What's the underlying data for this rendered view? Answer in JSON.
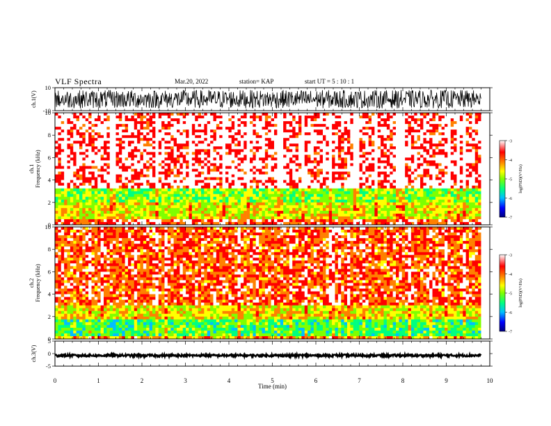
{
  "header": {
    "title": "VLF Spectra",
    "date": "Mar.20, 2022",
    "station": "station= KAP",
    "start_ut": "start  UT =   5 : 10 : 1"
  },
  "chart_data": [
    {
      "type": "line",
      "name": "ch.1 waveform",
      "ylabel": "ch.1(V)",
      "ylim": [
        -10,
        10
      ],
      "y_ticks": [
        "10",
        "-10"
      ],
      "xlim": [
        0,
        10
      ],
      "data_extent_min": [
        0,
        9.8
      ],
      "amplitude_range_V": [
        -8,
        8
      ],
      "trace_color": "#000000"
    },
    {
      "type": "heatmap",
      "name": "ch.1 spectrogram",
      "ylabel_line1": "ch.1",
      "ylabel_line2": "Frequency  (kHz)",
      "ylim": [
        0,
        10
      ],
      "y_ticks": [
        "0",
        "2",
        "4",
        "6",
        "8",
        "10"
      ],
      "xlim": [
        0,
        10
      ],
      "data_extent_min": [
        0,
        9.8
      ],
      "bands_kHz": [
        {
          "from": 0,
          "to": 0.5,
          "level": -3.6
        },
        {
          "from": 0.5,
          "to": 2.0,
          "level": -4.6
        },
        {
          "from": 2.0,
          "to": 3.2,
          "level": -5.0
        },
        {
          "from": 3.2,
          "to": 10,
          "level": -3.2
        }
      ],
      "colorbar": {
        "label": "log(PSD)(V²/Hz)",
        "ticks": [
          "-3",
          "-4",
          "-5",
          "-6",
          "-7"
        ],
        "range": [
          -7,
          -3
        ]
      }
    },
    {
      "type": "heatmap",
      "name": "ch.2 spectrogram",
      "ylabel_line1": "ch.2",
      "ylabel_line2": "Frequency  (kHz)",
      "ylim": [
        0,
        10
      ],
      "y_ticks": [
        "0",
        "2",
        "4",
        "6",
        "8",
        "10"
      ],
      "xlim": [
        0,
        10
      ],
      "data_extent_min": [
        0,
        9.8
      ],
      "bands_kHz": [
        {
          "from": 0,
          "to": 0.3,
          "level": -4.2
        },
        {
          "from": 0.3,
          "to": 1.8,
          "level": -5.3
        },
        {
          "from": 1.8,
          "to": 3.0,
          "level": -4.5
        },
        {
          "from": 3.0,
          "to": 10,
          "level": -3.7
        }
      ],
      "colorbar": {
        "label": "log(PSD)(V²/Hz)",
        "ticks": [
          "-3",
          "-4",
          "-5",
          "-6",
          "-7"
        ],
        "range": [
          -7,
          -3
        ]
      }
    },
    {
      "type": "line",
      "name": "ch.3 waveform",
      "ylabel": "ch.3(V)",
      "ylim": [
        -5,
        5
      ],
      "y_ticks": [
        "5",
        "0",
        "-5"
      ],
      "xlim": [
        0,
        10
      ],
      "data_extent_min": [
        0,
        9.8
      ],
      "amplitude_range_V": [
        -1.2,
        -0.3
      ],
      "trace_color": "#000000"
    }
  ],
  "x_axis": {
    "label": "Time  (min)",
    "ticks": [
      "0",
      "1",
      "2",
      "3",
      "4",
      "5",
      "6",
      "7",
      "8",
      "9",
      "10"
    ],
    "range": [
      0,
      10
    ]
  },
  "colormap": [
    "#000080",
    "#0000ff",
    "#00bfff",
    "#00ff80",
    "#7fff00",
    "#ffff00",
    "#ff8000",
    "#ff0000",
    "#ffffff"
  ]
}
